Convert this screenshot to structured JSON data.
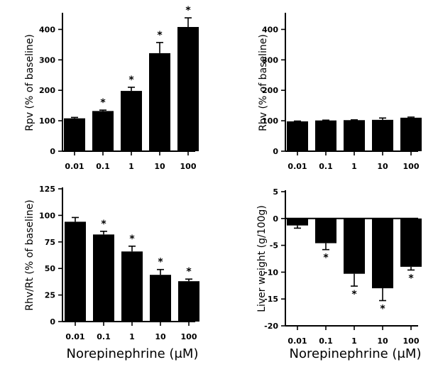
{
  "colors": {
    "bar": "#000000",
    "axis": "#000000",
    "background": "#ffffff"
  },
  "chart_data": [
    {
      "type": "bar",
      "panel": "top-left",
      "categories": [
        "0.01",
        "0.1",
        "1",
        "10",
        "100"
      ],
      "values": [
        108,
        132,
        198,
        322,
        408
      ],
      "errors": [
        3,
        3,
        12,
        35,
        30
      ],
      "significant": [
        false,
        true,
        true,
        true,
        true
      ],
      "significance_marker": "*",
      "ylabel": "Rpv (% of baseline)",
      "xlabel": "",
      "ylim": [
        0,
        450
      ],
      "yticks": [
        0,
        100,
        200,
        300,
        400
      ]
    },
    {
      "type": "bar",
      "panel": "top-right",
      "categories": [
        "0.01",
        "0.1",
        "1",
        "10",
        "100"
      ],
      "values": [
        98,
        101,
        102,
        103,
        110
      ],
      "errors": [
        1,
        1,
        1,
        6,
        2
      ],
      "significant": [
        false,
        false,
        false,
        false,
        false
      ],
      "significance_marker": "*",
      "ylabel": "Rhv (% of baseline)",
      "xlabel": "",
      "ylim": [
        0,
        450
      ],
      "yticks": [
        0,
        100,
        200,
        300,
        400
      ]
    },
    {
      "type": "bar",
      "panel": "bottom-left",
      "categories": [
        "0.01",
        "0.1",
        "1",
        "10",
        "100"
      ],
      "values": [
        94,
        82,
        66,
        44,
        38
      ],
      "errors": [
        4,
        3,
        5,
        5,
        2
      ],
      "significant": [
        false,
        true,
        true,
        true,
        true
      ],
      "significance_marker": "*",
      "ylabel": "Rhv/Rt (% of baseline)",
      "xlabel": "Norepinephrine (μM)",
      "ylim": [
        0,
        125
      ],
      "yticks": [
        0,
        25,
        50,
        75,
        100,
        125
      ]
    },
    {
      "type": "bar",
      "panel": "bottom-right",
      "categories": [
        "0.01",
        "0.1",
        "1",
        "10",
        "100"
      ],
      "values": [
        -1.3,
        -4.6,
        -10.3,
        -13.0,
        -9.0
      ],
      "errors": [
        0.5,
        1.2,
        2.3,
        2.3,
        0.6
      ],
      "significant": [
        false,
        true,
        true,
        true,
        true
      ],
      "significance_marker": "*",
      "ylabel": "Liver weight (g/100g)",
      "xlabel": "Norepinephrine (μM)",
      "ylim": [
        -20,
        5
      ],
      "yticks": [
        -20,
        -15,
        -10,
        -5,
        0,
        5
      ]
    }
  ]
}
